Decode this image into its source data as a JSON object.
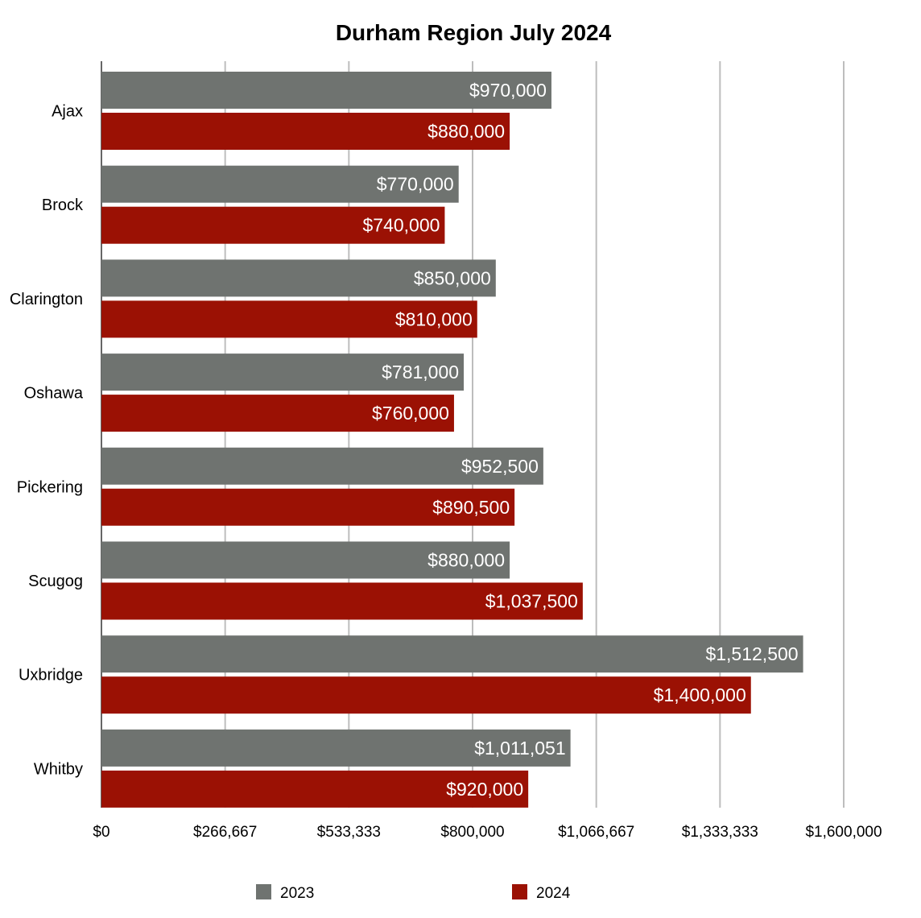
{
  "chart_data": {
    "type": "bar",
    "orientation": "horizontal",
    "title": "Durham Region July 2024",
    "xlabel": "",
    "ylabel": "",
    "xlim": [
      0,
      1600000
    ],
    "x_ticks": [
      0,
      266667,
      533333,
      800000,
      1066667,
      1333333,
      1600000
    ],
    "x_tick_labels": [
      "$0",
      "$266,667",
      "$533,333",
      "$800,000",
      "$1,066,667",
      "$1,333,333",
      "$1,600,000"
    ],
    "grid": "vertical",
    "legend_position": "bottom",
    "categories": [
      "Ajax",
      "Brock",
      "Clarington",
      "Oshawa",
      "Pickering",
      "Scugog",
      "Uxbridge",
      "Whitby"
    ],
    "series": [
      {
        "name": "2023",
        "color": "#6f7370",
        "values": [
          970000,
          770000,
          850000,
          781000,
          952500,
          880000,
          1512500,
          1011051
        ],
        "labels": [
          "$970,000",
          "$770,000",
          "$850,000",
          "$781,000",
          "$952,500",
          "$880,000",
          "$1,512,500",
          "$1,011,051"
        ]
      },
      {
        "name": "2024",
        "color": "#9b1104",
        "values": [
          880000,
          740000,
          810000,
          760000,
          890500,
          1037500,
          1400000,
          920000
        ],
        "labels": [
          "$880,000",
          "$740,000",
          "$810,000",
          "$760,000",
          "$890,500",
          "$1,037,500",
          "$1,400,000",
          "$920,000"
        ]
      }
    ]
  }
}
